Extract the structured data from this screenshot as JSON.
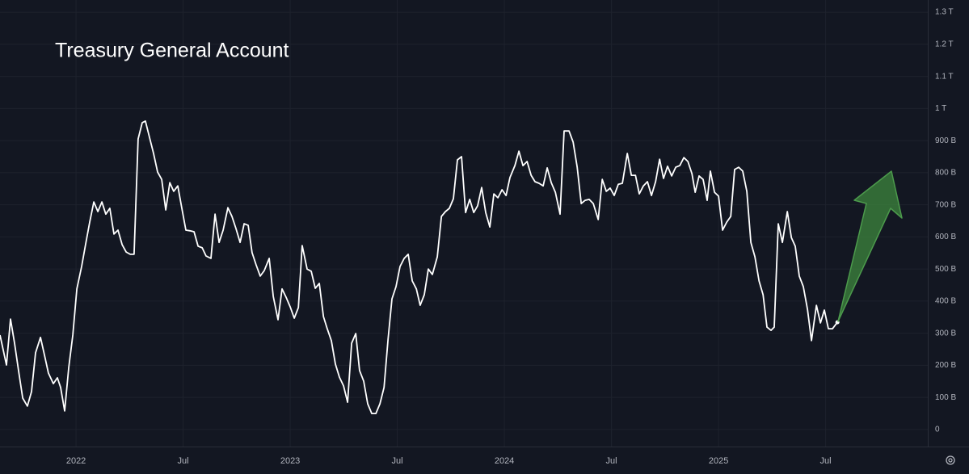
{
  "chart_data": {
    "type": "line",
    "title": "Treasury General Account",
    "x": [
      2021.645,
      2021.675,
      2021.694,
      2021.713,
      2021.732,
      2021.751,
      2021.773,
      2021.792,
      2021.811,
      2021.834,
      2021.853,
      2021.871,
      2021.894,
      2021.913,
      2021.928,
      2021.947,
      2021.966,
      2021.985,
      2022.004,
      2022.026,
      2022.045,
      2022.064,
      2022.083,
      2022.102,
      2022.121,
      2022.139,
      2022.158,
      2022.177,
      2022.196,
      2022.215,
      2022.234,
      2022.253,
      2022.271,
      2022.29,
      2022.309,
      2022.324,
      2022.343,
      2022.362,
      2022.381,
      2022.4,
      2022.419,
      2022.438,
      2022.456,
      2022.475,
      2022.494,
      2022.513,
      2022.532,
      2022.551,
      2022.57,
      2022.589,
      2022.607,
      2022.63,
      2022.649,
      2022.668,
      2022.687,
      2022.709,
      2022.728,
      2022.747,
      2022.766,
      2022.785,
      2022.804,
      2022.822,
      2022.841,
      2022.86,
      2022.879,
      2022.902,
      2022.921,
      2022.943,
      2022.962,
      2022.981,
      2023.0,
      2023.019,
      2023.038,
      2023.056,
      2023.079,
      2023.098,
      2023.117,
      2023.136,
      2023.155,
      2023.173,
      2023.192,
      2023.211,
      2023.23,
      2023.249,
      2023.268,
      2023.287,
      2023.306,
      2023.324,
      2023.343,
      2023.362,
      2023.381,
      2023.4,
      2023.419,
      2023.438,
      2023.457,
      2023.475,
      2023.494,
      2023.513,
      2023.532,
      2023.551,
      2023.57,
      2023.589,
      2023.607,
      2023.626,
      2023.645,
      2023.664,
      2023.687,
      2023.706,
      2023.725,
      2023.743,
      2023.762,
      2023.781,
      2023.8,
      2023.819,
      2023.838,
      2023.857,
      2023.875,
      2023.894,
      2023.913,
      2023.932,
      2023.951,
      2023.97,
      2023.989,
      2024.008,
      2024.026,
      2024.049,
      2024.068,
      2024.087,
      2024.106,
      2024.125,
      2024.143,
      2024.162,
      2024.181,
      2024.2,
      2024.219,
      2024.238,
      2024.26,
      2024.279,
      2024.302,
      2024.321,
      2024.34,
      2024.359,
      2024.377,
      2024.396,
      2024.415,
      2024.438,
      2024.457,
      2024.476,
      2024.494,
      2024.513,
      2024.532,
      2024.551,
      2024.574,
      2024.593,
      2024.612,
      2024.63,
      2024.649,
      2024.668,
      2024.687,
      2024.706,
      2024.725,
      2024.743,
      2024.762,
      2024.781,
      2024.8,
      2024.819,
      2024.838,
      2024.857,
      2024.876,
      2024.891,
      2024.909,
      2024.928,
      2024.947,
      2024.962,
      2024.981,
      2025.0,
      2025.019,
      2025.038,
      2025.057,
      2025.075,
      2025.094,
      2025.113,
      2025.132,
      2025.151,
      2025.17,
      2025.189,
      2025.208,
      2025.226,
      2025.245,
      2025.26,
      2025.279,
      2025.298,
      2025.321,
      2025.34,
      2025.358,
      2025.377,
      2025.396,
      2025.415,
      2025.434,
      2025.457,
      2025.476,
      2025.494,
      2025.513,
      2025.532,
      2025.555
    ],
    "values": [
      294,
      201,
      344,
      269,
      181,
      98,
      73,
      118,
      239,
      287,
      231,
      176,
      143,
      161,
      131,
      58,
      194,
      294,
      438,
      508,
      578,
      646,
      709,
      679,
      709,
      671,
      689,
      609,
      621,
      576,
      553,
      546,
      546,
      905,
      956,
      961,
      910,
      860,
      802,
      779,
      684,
      769,
      742,
      759,
      689,
      621,
      619,
      616,
      571,
      566,
      541,
      533,
      671,
      583,
      621,
      691,
      664,
      626,
      583,
      641,
      636,
      551,
      513,
      478,
      495,
      533,
      415,
      342,
      438,
      412,
      382,
      347,
      380,
      573,
      500,
      493,
      440,
      455,
      352,
      314,
      277,
      204,
      163,
      136,
      85,
      269,
      299,
      184,
      151,
      80,
      50,
      50,
      80,
      131,
      282,
      407,
      445,
      508,
      533,
      546,
      463,
      438,
      387,
      420,
      500,
      483,
      538,
      664,
      679,
      689,
      719,
      840,
      850,
      676,
      717,
      676,
      697,
      754,
      676,
      631,
      734,
      722,
      747,
      729,
      785,
      822,
      867,
      822,
      835,
      792,
      772,
      767,
      759,
      815,
      769,
      739,
      671,
      930,
      930,
      895,
      817,
      704,
      714,
      717,
      704,
      654,
      779,
      742,
      752,
      729,
      764,
      767,
      860,
      792,
      792,
      734,
      759,
      772,
      729,
      772,
      842,
      782,
      820,
      790,
      817,
      822,
      847,
      835,
      797,
      739,
      790,
      779,
      714,
      805,
      739,
      727,
      621,
      646,
      664,
      810,
      817,
      805,
      742,
      583,
      538,
      463,
      420,
      319,
      309,
      319,
      641,
      583,
      679,
      598,
      571,
      478,
      445,
      375,
      277,
      387,
      332,
      372,
      314,
      314,
      334
    ],
    "color": "#ffffff",
    "xlim": [
      2021.645,
      2025.977
    ],
    "xticks": [
      {
        "value": 2022,
        "label": "2022"
      },
      {
        "value": 2022.5,
        "label": "Jul"
      },
      {
        "value": 2023,
        "label": "2023"
      },
      {
        "value": 2023.5,
        "label": "Jul"
      },
      {
        "value": 2024,
        "label": "2024"
      },
      {
        "value": 2024.5,
        "label": "Jul"
      },
      {
        "value": 2025,
        "label": "2025"
      },
      {
        "value": 2025.5,
        "label": "Jul"
      }
    ],
    "ylim": [
      -53,
      1338
    ],
    "yticks": [
      0,
      {
        "value": 100,
        "label": "100 B"
      },
      {
        "value": 200,
        "label": "200 B"
      },
      {
        "value": 300,
        "label": "300 B"
      },
      {
        "value": 400,
        "label": "400 B"
      },
      {
        "value": 500,
        "label": "500 B"
      },
      {
        "value": 600,
        "label": "600 B"
      },
      {
        "value": 700,
        "label": "700 B"
      },
      {
        "value": 800,
        "label": "800 B"
      },
      {
        "value": 900,
        "label": "900 B"
      },
      {
        "value": 1000,
        "label": "1 T"
      },
      {
        "value": 1100,
        "label": "1.1 T"
      },
      {
        "value": 1200,
        "label": "1.2 T"
      },
      {
        "value": 1300,
        "label": "1.3 T"
      }
    ],
    "grid": true
  }
}
